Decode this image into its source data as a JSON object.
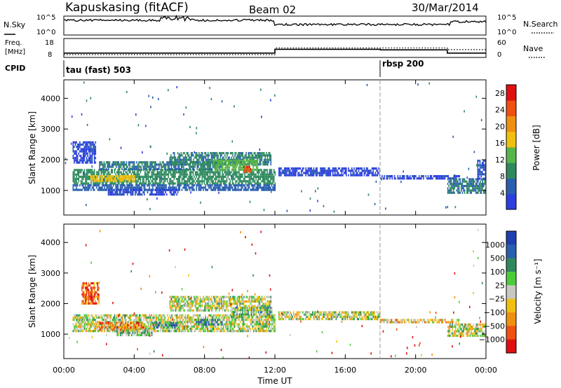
{
  "header": {
    "station": "Kapuskasing (fitACF)",
    "beam": "Beam 02",
    "date": "30/Mar/2014"
  },
  "top_panels": {
    "nsky_label": "N.Sky",
    "nsearch_label": "N.Search",
    "freq_label_1": "Freq.",
    "freq_label_2": "[MHz]",
    "nave_label": "Nave",
    "cpid_label": "CPID",
    "nsky_ticks": [
      "10^5",
      "10^0"
    ],
    "nsearch_ticks": [
      "10^5",
      "10^0"
    ],
    "freq_ticks": [
      "18",
      "8"
    ],
    "nave_ticks": [
      "60",
      "0"
    ],
    "cpid_segments": [
      {
        "label": "tau (fast) 503",
        "start_hour": 0,
        "end_hour": 18
      },
      {
        "label": "rbsp 200",
        "start_hour": 18,
        "end_hour": 24
      }
    ]
  },
  "chart_data": [
    {
      "type": "line",
      "name": "noise-frequency-panel",
      "x_unit": "hour UT",
      "xlim": [
        0,
        24
      ],
      "series": [
        {
          "name": "Freq",
          "style": "solid",
          "ylim": [
            8,
            18
          ],
          "points": [
            [
              0,
              10.3
            ],
            [
              12,
              10.3
            ],
            [
              12,
              12.3
            ],
            [
              18,
              12.3
            ],
            [
              18,
              12.0
            ],
            [
              21.8,
              12.0
            ],
            [
              21.8,
              10.3
            ],
            [
              24,
              10.3
            ]
          ]
        },
        {
          "name": "Nave",
          "style": "dotted",
          "ylim": [
            0,
            60
          ],
          "points": [
            [
              0,
              9
            ],
            [
              12,
              9
            ],
            [
              12,
              30
            ],
            [
              21.8,
              30
            ],
            [
              21.8,
              25
            ],
            [
              24,
              25
            ]
          ]
        }
      ]
    },
    {
      "type": "heatmap",
      "name": "power",
      "xlabel": "Time UT",
      "ylabel": "Slant Range [km]",
      "xlim": [
        0,
        24
      ],
      "ylim": [
        200,
        4600
      ],
      "x_ticks": [
        "00:00",
        "04:00",
        "08:00",
        "12:00",
        "16:00",
        "20:00",
        "00:00"
      ],
      "y_ticks": [
        1000,
        2000,
        3000,
        4000
      ],
      "colorbar": {
        "label": "Power [dB]",
        "ticks": [
          4,
          8,
          12,
          16,
          20,
          24,
          28
        ],
        "range": [
          0,
          30
        ],
        "colors": [
          "#2b3ee0",
          "#2a5fb0",
          "#2e8a5e",
          "#58b54a",
          "#f0c010",
          "#f09010",
          "#f05010",
          "#e01010"
        ]
      },
      "bands": [
        {
          "x0": 0.5,
          "x1": 12,
          "r0": 1200,
          "r1": 1700,
          "v": 10
        },
        {
          "x0": 0.5,
          "x1": 12,
          "r0": 1000,
          "r1": 1200,
          "v": 6
        },
        {
          "x0": 1.5,
          "x1": 4,
          "r0": 1300,
          "r1": 1500,
          "v": 18
        },
        {
          "x0": 2,
          "x1": 9,
          "r0": 1700,
          "r1": 1950,
          "v": 8
        },
        {
          "x0": 6,
          "x1": 11.8,
          "r0": 1850,
          "r1": 2250,
          "v": 9
        },
        {
          "x0": 8.5,
          "x1": 11,
          "r0": 1700,
          "r1": 2000,
          "v": 14
        },
        {
          "x0": 10.2,
          "x1": 10.6,
          "r0": 1650,
          "r1": 1800,
          "v": 27
        },
        {
          "x0": 0.5,
          "x1": 1.8,
          "r0": 1900,
          "r1": 2600,
          "v": 3
        },
        {
          "x0": 2.5,
          "x1": 6.5,
          "r0": 900,
          "r1": 1050,
          "v": 3
        },
        {
          "x0": 12.2,
          "x1": 18,
          "r0": 1500,
          "r1": 1750,
          "v": 3
        },
        {
          "x0": 18,
          "x1": 22.5,
          "r0": 1400,
          "r1": 1500,
          "v": 3
        },
        {
          "x0": 21.8,
          "x1": 24,
          "r0": 950,
          "r1": 1400,
          "v": 8
        },
        {
          "x0": 23.5,
          "x1": 24,
          "r0": 1400,
          "r1": 2000,
          "v": 4
        }
      ]
    },
    {
      "type": "heatmap",
      "name": "velocity",
      "xlabel": "Time UT",
      "ylabel": "Slant Range [km]",
      "xlim": [
        0,
        24
      ],
      "ylim": [
        200,
        4600
      ],
      "x_ticks": [
        "00:00",
        "04:00",
        "08:00",
        "12:00",
        "16:00",
        "20:00",
        "00:00"
      ],
      "y_ticks": [
        1000,
        2000,
        3000,
        4000
      ],
      "colorbar": {
        "label": "Velocity [m s⁻¹]",
        "ticks": [
          "1000",
          "500",
          "100",
          "25",
          "−25",
          "−100",
          "−500",
          "−1000"
        ],
        "colors": [
          "#1f3fb0",
          "#2a5fb0",
          "#2e8a5e",
          "#4ccc3a",
          "#c8c8c0",
          "#f0c010",
          "#f09010",
          "#f05010",
          "#e01010"
        ]
      },
      "bands": [
        {
          "x0": 0.5,
          "x1": 12,
          "r0": 1100,
          "r1": 1650,
          "v": 4
        },
        {
          "x0": 6,
          "x1": 11.8,
          "r0": 1800,
          "r1": 2250,
          "v": 4
        },
        {
          "x0": 2,
          "x1": 4.5,
          "r0": 1150,
          "r1": 1400,
          "v": 6
        },
        {
          "x0": 5,
          "x1": 6.5,
          "r0": 1200,
          "r1": 1400,
          "v": 2
        },
        {
          "x0": 7.5,
          "x1": 9,
          "r0": 1300,
          "r1": 1500,
          "v": 2
        },
        {
          "x0": 9.5,
          "x1": 11.8,
          "r0": 1550,
          "r1": 1900,
          "v": 3
        },
        {
          "x0": 3,
          "x1": 5,
          "r0": 1000,
          "r1": 1150,
          "v": 3
        },
        {
          "x0": 1,
          "x1": 2,
          "r0": 2000,
          "r1": 2700,
          "v": 7
        },
        {
          "x0": 12.2,
          "x1": 18,
          "r0": 1500,
          "r1": 1750,
          "v": 4
        },
        {
          "x0": 18,
          "x1": 22.5,
          "r0": 1400,
          "r1": 1500,
          "v": 5
        },
        {
          "x0": 21.8,
          "x1": 24,
          "r0": 950,
          "r1": 1350,
          "v": 4
        }
      ]
    }
  ]
}
